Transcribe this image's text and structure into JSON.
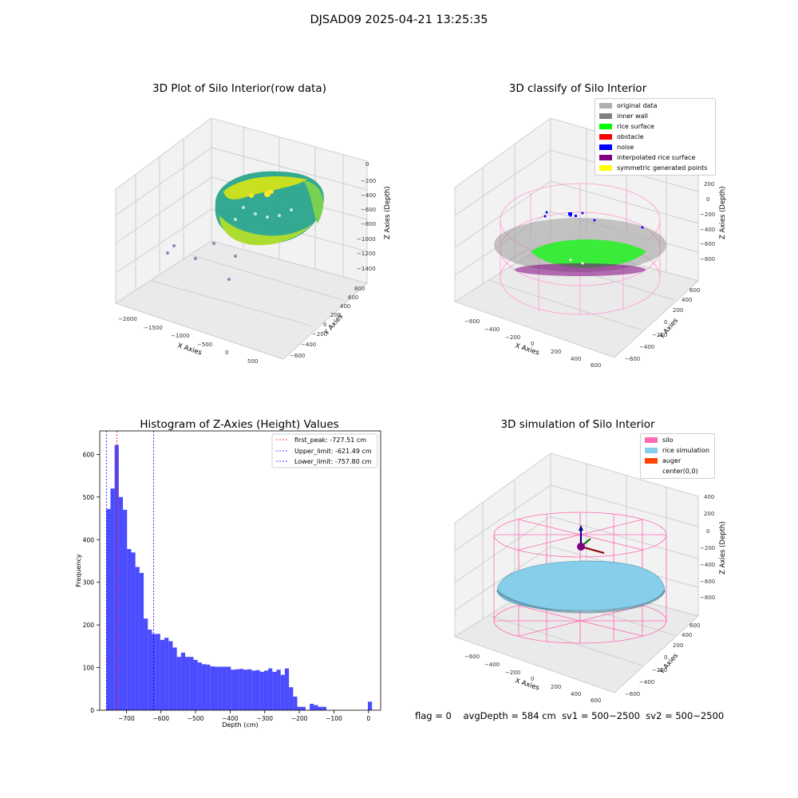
{
  "figure": {
    "suptitle": "DJSAD09 2025-04-21 13:25:35",
    "footer": {
      "flag": "flag = 0",
      "avg_depth": "avgDepth = 584 cm",
      "sv1": "sv1 = 500~2500",
      "sv2": "sv2 = 500~2500"
    }
  },
  "panels": {
    "raw": {
      "title": "3D Plot of Silo Interior(row data)",
      "xlabel": "X Axies",
      "ylabel": "Y Axies",
      "zlabel": "Z Axies (Depth)",
      "xticks": [
        "−2000",
        "−1500",
        "−1000",
        "−500",
        "0",
        "500"
      ],
      "yticks": [
        "−600",
        "−400",
        "−200",
        "0",
        "200",
        "400",
        "600",
        "800"
      ],
      "zticks": [
        "0",
        "−200",
        "−400",
        "−600",
        "−800",
        "−1000",
        "−1200",
        "−1400"
      ]
    },
    "classify": {
      "title": "3D classify of Silo Interior",
      "xlabel": "X Axies",
      "ylabel": "Y Axies",
      "zlabel": "Z Axies (Depth)",
      "xticks": [
        "−600",
        "−400",
        "−200",
        "0",
        "200",
        "400",
        "600"
      ],
      "yticks": [
        "−600",
        "−400",
        "−200",
        "0",
        "200",
        "400",
        "600"
      ],
      "zticks": [
        "200",
        "0",
        "−200",
        "−400",
        "−600",
        "−800"
      ],
      "legend": [
        {
          "label": "original data",
          "color": "#b0b0b0"
        },
        {
          "label": "inner wall",
          "color": "#808080"
        },
        {
          "label": "rice surface",
          "color": "#00ff00"
        },
        {
          "label": "obstacle",
          "color": "#ff0000"
        },
        {
          "label": "noise",
          "color": "#0000ff"
        },
        {
          "label": "interpolated rice surface",
          "color": "#800080"
        },
        {
          "label": "symmetric generated points",
          "color": "#ffff00"
        }
      ]
    },
    "simulation": {
      "title": "3D simulation of Silo Interior",
      "xlabel": "X Axies",
      "ylabel": "Y Axies",
      "zlabel": "Z Axies (Depth)",
      "xticks": [
        "−600",
        "−400",
        "−200",
        "0",
        "200",
        "400",
        "600"
      ],
      "yticks": [
        "−600",
        "−400",
        "−200",
        "0",
        "200",
        "400",
        "600"
      ],
      "zticks": [
        "400",
        "200",
        "0",
        "−200",
        "−400",
        "−600",
        "−800"
      ],
      "legend": [
        {
          "label": "silo",
          "color": "#ff69b4"
        },
        {
          "label": "rice simulation",
          "color": "#87ceeb"
        },
        {
          "label": "auger",
          "color": "#ff4500"
        },
        {
          "label": "center(0,0)",
          "color": "#ffffff"
        }
      ]
    }
  },
  "chart_data": {
    "type": "bar",
    "title": "Histogram of Z-Axies (Height) Values",
    "xlabel": "Depth (cm)",
    "ylabel": "Frequency",
    "xlim": [
      -777,
      35
    ],
    "ylim": [
      0,
      655
    ],
    "xticks": [
      -700,
      -600,
      -500,
      -400,
      -300,
      -200,
      -100,
      0
    ],
    "xtick_labels": [
      "−700",
      "−600",
      "−500",
      "−400",
      "−300",
      "−200",
      "−100",
      "0"
    ],
    "yticks": [
      0,
      100,
      200,
      300,
      400,
      500,
      600
    ],
    "bar_color": "#0000ff",
    "bin_width": 12,
    "bin_starts": [
      -758,
      -746,
      -734,
      -722,
      -710,
      -698,
      -686,
      -674,
      -662,
      -650,
      -638,
      -626,
      -614,
      -602,
      -590,
      -578,
      -566,
      -554,
      -542,
      -530,
      -518,
      -506,
      -494,
      -482,
      -470,
      -458,
      -446,
      -434,
      -422,
      -410,
      -398,
      -386,
      -374,
      -362,
      -350,
      -338,
      -326,
      -314,
      -302,
      -290,
      -278,
      -266,
      -254,
      -242,
      -230,
      -218,
      -206,
      -194,
      -182,
      -170,
      -158,
      -146,
      -134,
      -122,
      -110,
      -98,
      -86,
      -74,
      -62,
      -50,
      -38,
      -26,
      -14,
      -2
    ],
    "values": [
      472,
      520,
      622,
      500,
      470,
      378,
      370,
      336,
      322,
      215,
      189,
      179,
      179,
      165,
      170,
      162,
      147,
      125,
      135,
      125,
      125,
      118,
      112,
      108,
      107,
      103,
      102,
      102,
      102,
      102,
      95,
      96,
      97,
      95,
      96,
      93,
      94,
      90,
      93,
      98,
      90,
      95,
      83,
      98,
      54,
      32,
      8,
      8,
      0,
      15,
      12,
      8,
      8,
      0,
      0,
      0,
      0,
      0,
      0,
      0,
      0,
      0,
      0,
      20
    ],
    "vlines": [
      {
        "label": "first_peak: -727.51 cm",
        "x": -727.51,
        "color": "#ff0000"
      },
      {
        "label": "Upper_limit: -621.49 cm",
        "x": -621.49,
        "color": "#0000ff"
      },
      {
        "label": "Lower_limit: -757.80 cm",
        "x": -757.8,
        "color": "#0000ff"
      }
    ],
    "legend_position": "upper right"
  }
}
